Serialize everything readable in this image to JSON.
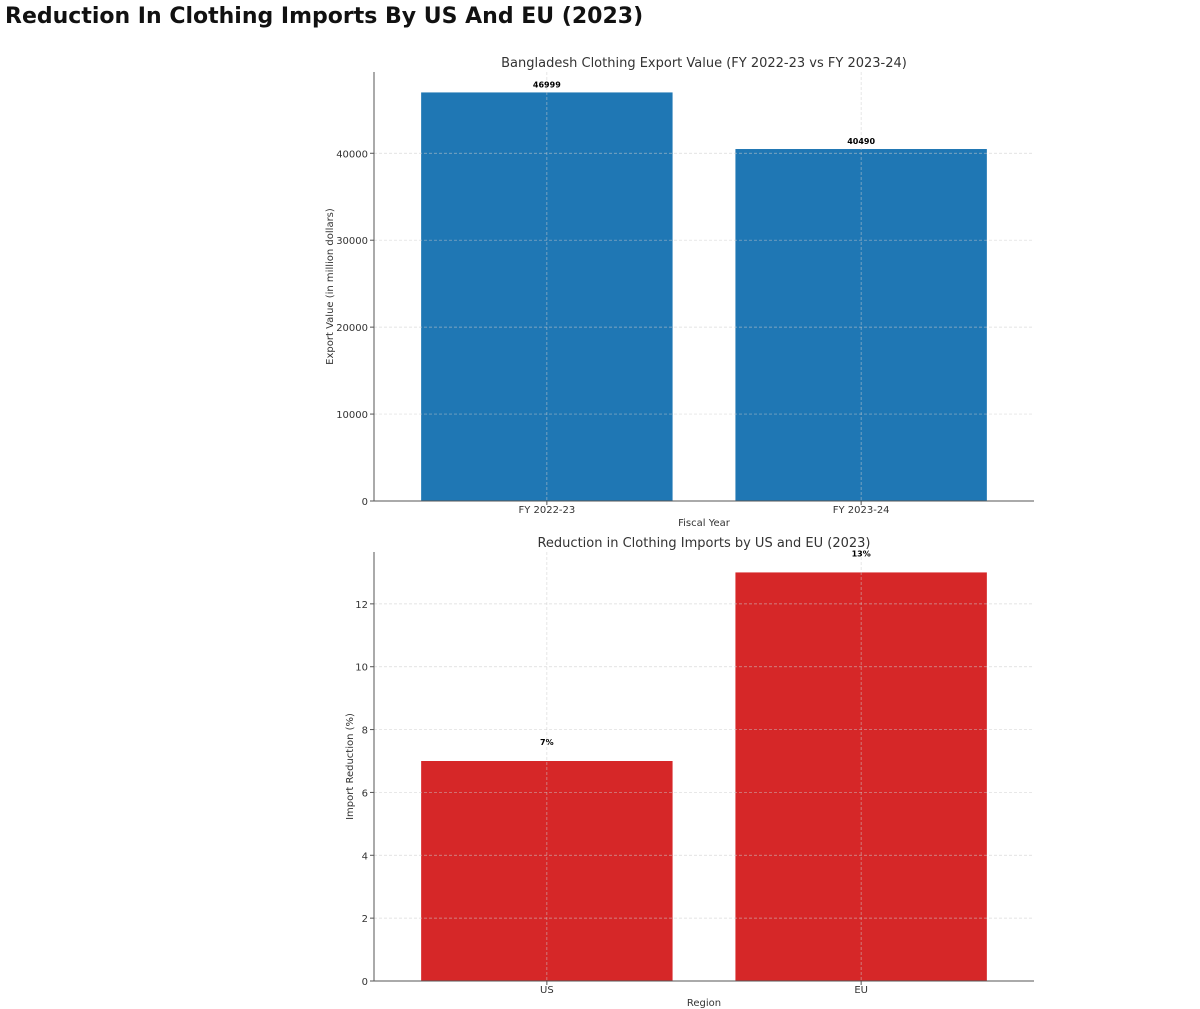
{
  "page": {
    "title": "Reduction In Clothing Imports By US And EU (2023)"
  },
  "chart_data": [
    {
      "type": "bar",
      "title": "Bangladesh Clothing Export Value (FY 2022-23 vs FY 2023-24)",
      "xlabel": "Fiscal Year",
      "ylabel": "Export Value (in million dollars)",
      "categories": [
        "FY 2022-23",
        "FY 2023-24"
      ],
      "values": [
        46999,
        40490
      ],
      "data_labels": [
        "46999",
        "40490"
      ],
      "yticks": [
        0,
        10000,
        20000,
        30000,
        40000
      ],
      "ylim": [
        0,
        49349
      ],
      "grid": true,
      "color": "#1f77b4"
    },
    {
      "type": "bar",
      "title": "Reduction in Clothing Imports by US and EU (2023)",
      "xlabel": "Region",
      "ylabel": "Import Reduction (%)",
      "categories": [
        "US",
        "EU"
      ],
      "values": [
        7,
        13
      ],
      "data_labels": [
        "7%",
        "13%"
      ],
      "yticks": [
        0,
        2,
        4,
        6,
        8,
        10,
        12
      ],
      "ylim": [
        0,
        13.65
      ],
      "grid": true,
      "color": "#d62728"
    }
  ]
}
